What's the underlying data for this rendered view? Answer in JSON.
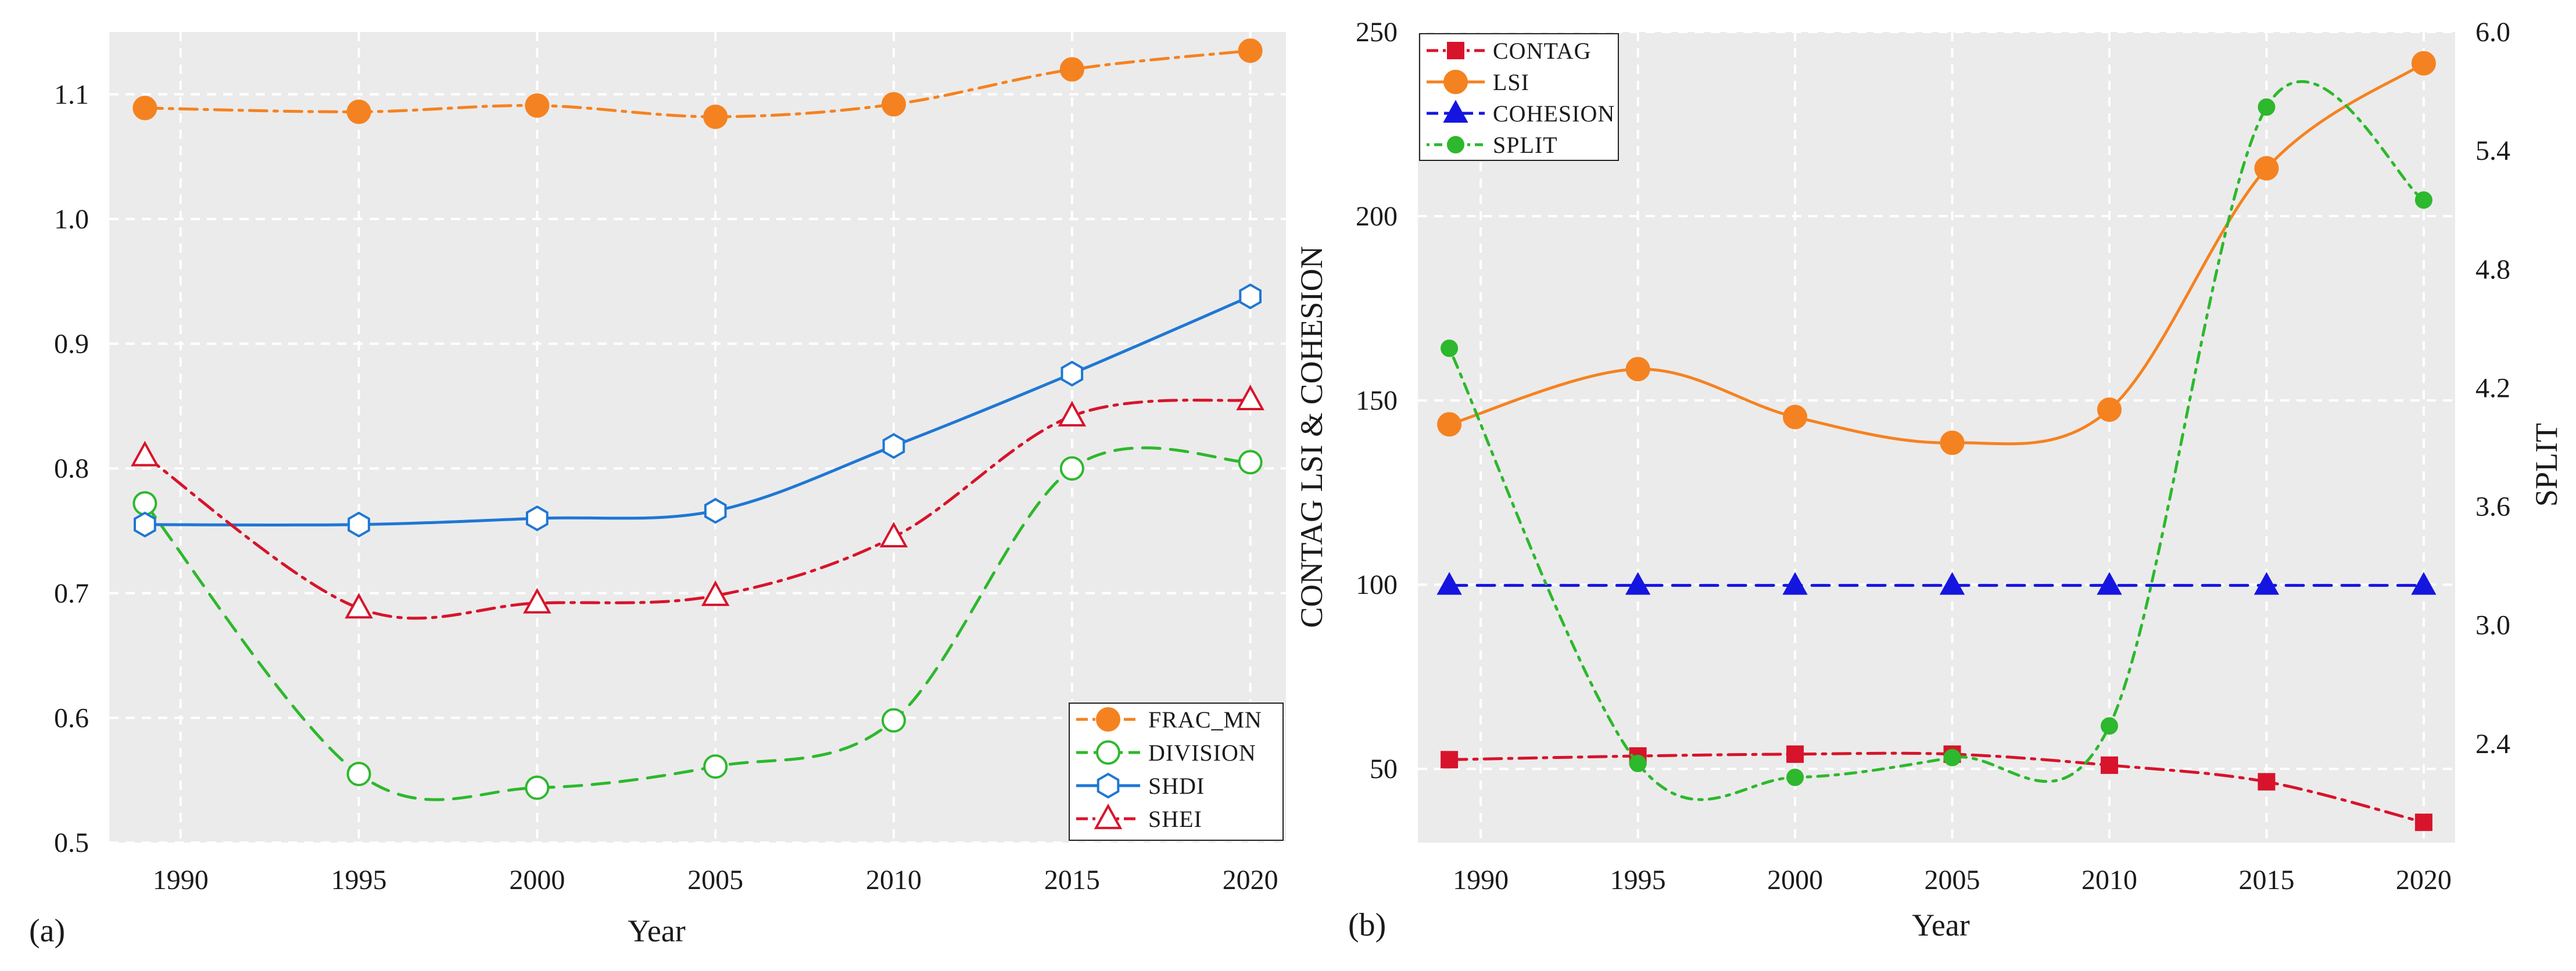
{
  "chart_data": [
    {
      "type": "line",
      "panel_label": "(a)",
      "xlabel": "Year",
      "ylabel": "",
      "x": [
        1989,
        1995,
        2000,
        2005,
        2010,
        2015,
        2020
      ],
      "x_ticks": [
        1990,
        1995,
        2000,
        2005,
        2010,
        2015,
        2020
      ],
      "xlim": [
        1988,
        2021
      ],
      "ylim": [
        0.5,
        1.15
      ],
      "y_ticks": [
        0.5,
        0.6,
        0.7,
        0.8,
        0.9,
        1.0,
        1.1
      ],
      "y_tick_labels": [
        "0.5",
        "0.6",
        "0.7",
        "0.8",
        "0.9",
        "1.0",
        "1.1"
      ],
      "grid": true,
      "legend_position": "bottom-right",
      "series": [
        {
          "name": "FRAC_MN",
          "color": "#f58220",
          "marker": "circle-filled",
          "dash": "dashdot",
          "values": [
            1.089,
            1.086,
            1.091,
            1.082,
            1.092,
            1.12,
            1.135
          ]
        },
        {
          "name": "DIVISION",
          "color": "#2db82d",
          "marker": "circle-open",
          "dash": "dashed",
          "values": [
            0.772,
            0.555,
            0.544,
            0.561,
            0.598,
            0.8,
            0.805
          ]
        },
        {
          "name": "SHDI",
          "color": "#1f77d4",
          "marker": "hexagon-open",
          "dash": "solid",
          "values": [
            0.755,
            0.755,
            0.76,
            0.766,
            0.818,
            0.876,
            0.938
          ]
        },
        {
          "name": "SHEI",
          "color": "#d7142b",
          "marker": "triangle-open",
          "dash": "dashdot",
          "values": [
            0.81,
            0.688,
            0.692,
            0.698,
            0.745,
            0.842,
            0.855
          ]
        }
      ]
    },
    {
      "type": "line",
      "panel_label": "(b)",
      "xlabel": "Year",
      "ylabel": "CONTAG  LSI & COHESION",
      "ylabel_right": "SPLIT",
      "x": [
        1989,
        1995,
        2000,
        2005,
        2010,
        2015,
        2020
      ],
      "x_ticks": [
        1990,
        1995,
        2000,
        2005,
        2010,
        2015,
        2020
      ],
      "xlim": [
        1988,
        2021
      ],
      "ylim": [
        30,
        250
      ],
      "y_ticks": [
        50,
        100,
        150,
        200,
        250
      ],
      "y_tick_labels": [
        "50",
        "100",
        "150",
        "200",
        "250"
      ],
      "ylim_right": [
        1.9,
        6.0
      ],
      "y_ticks_right": [
        2.4,
        3.0,
        3.6,
        4.2,
        4.8,
        5.4,
        6.0
      ],
      "y_tick_labels_right": [
        "2.4",
        "3.0",
        "3.6",
        "4.2",
        "4.8",
        "5.4",
        "6.0"
      ],
      "grid": true,
      "legend_position": "top-left",
      "series": [
        {
          "name": "CONTAG",
          "color": "#d7142b",
          "marker": "square-filled",
          "dash": "dashdot",
          "axis": "left",
          "values": [
            52.5,
            53.5,
            54.0,
            54.0,
            51.0,
            46.5,
            35.5
          ]
        },
        {
          "name": "LSI",
          "color": "#f58220",
          "marker": "circle-filled",
          "dash": "solid",
          "axis": "left",
          "values": [
            143.5,
            158.5,
            145.5,
            138.5,
            147.5,
            213.0,
            241.5
          ]
        },
        {
          "name": "COHESION",
          "color": "#1515e0",
          "marker": "triangle-filled",
          "dash": "dashed",
          "axis": "left",
          "values": [
            99.8,
            99.8,
            99.8,
            99.8,
            99.8,
            99.8,
            99.8
          ]
        },
        {
          "name": "SPLIT",
          "color": "#2db82d",
          "marker": "circle-filled-small",
          "dash": "dotdash",
          "axis": "right",
          "values": [
            4.4,
            2.3,
            2.23,
            2.33,
            2.49,
            5.62,
            5.15
          ]
        }
      ]
    }
  ]
}
